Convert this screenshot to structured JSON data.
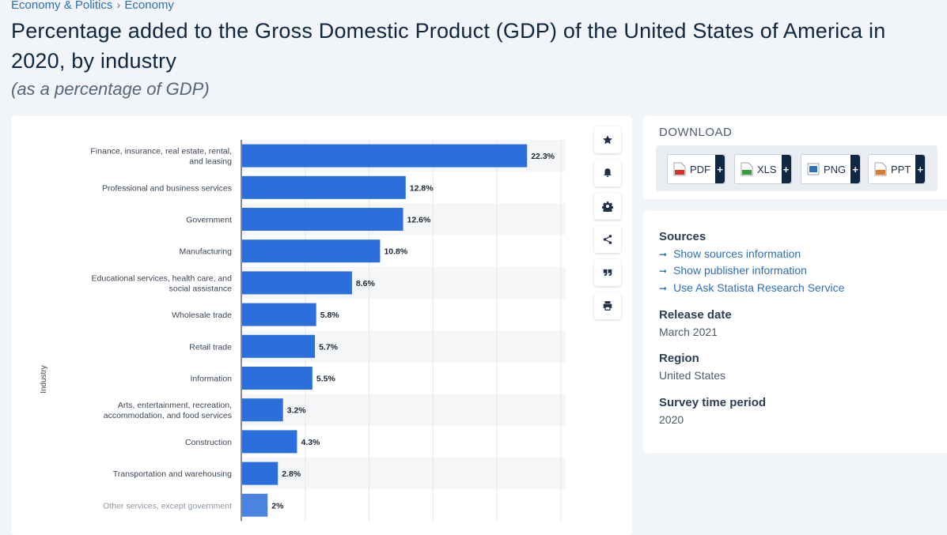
{
  "breadcrumb": {
    "items": [
      "Economy & Politics",
      "Economy"
    ],
    "separator": "›"
  },
  "title": "Percentage added to the Gross Domestic Product (GDP) of the United States of America in 2020, by industry",
  "subtitle": "(as a percentage of GDP)",
  "toolbar": {
    "icons": [
      "star-icon",
      "bell-icon",
      "gear-icon",
      "share-icon",
      "quote-icon",
      "print-icon"
    ]
  },
  "download": {
    "heading": "DOWNLOAD",
    "buttons": [
      {
        "label": "PDF",
        "icon": "pdf-file-icon",
        "color": "#d6312c"
      },
      {
        "label": "XLS",
        "icon": "xls-file-icon",
        "color": "#3c9b3c"
      },
      {
        "label": "PNG",
        "icon": "png-file-icon",
        "color": "#2f6fb5"
      },
      {
        "label": "PPT",
        "icon": "ppt-file-icon",
        "color": "#e07a2b"
      }
    ],
    "plus": "+"
  },
  "info": {
    "sources_heading": "Sources",
    "links": [
      "Show sources information",
      "Show publisher information",
      "Use Ask Statista Research Service"
    ],
    "release_heading": "Release date",
    "release_value": "March 2021",
    "region_heading": "Region",
    "region_value": "United States",
    "period_heading": "Survey time period",
    "period_value": "2020"
  },
  "chart_data": {
    "type": "bar",
    "orientation": "horizontal",
    "ylabel": "Industry",
    "bar_color": "#2a6fdb",
    "xlim": [
      0,
      25
    ],
    "grid": true,
    "categories": [
      [
        "Finance, insurance, real estate, rental,",
        "and leasing"
      ],
      [
        "Professional and business services"
      ],
      [
        "Government"
      ],
      [
        "Manufacturing"
      ],
      [
        "Educational services, health care, and",
        "social assistance"
      ],
      [
        "Wholesale trade"
      ],
      [
        "Retail trade"
      ],
      [
        "Information"
      ],
      [
        "Arts, entertainment, recreation,",
        "accommodation, and food services"
      ],
      [
        "Construction"
      ],
      [
        "Transportation and warehousing"
      ],
      [
        "Other services, except government"
      ]
    ],
    "values": [
      22.3,
      12.8,
      12.6,
      10.8,
      8.6,
      5.8,
      5.7,
      5.5,
      3.2,
      4.3,
      2.8,
      2
    ],
    "value_labels": [
      "22.3%",
      "12.8%",
      "12.6%",
      "10.8%",
      "8.6%",
      "5.8%",
      "5.7%",
      "5.5%",
      "3.2%",
      "4.3%",
      "2.8%",
      "2%"
    ]
  }
}
